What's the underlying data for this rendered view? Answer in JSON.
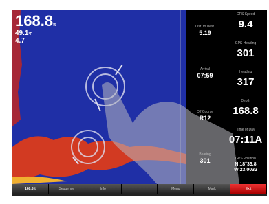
{
  "sonar": {
    "depth": "168.8",
    "depth_unit": "ft",
    "temperature": "49.1",
    "temperature_unit": "°F",
    "speed": "4.7"
  },
  "middle_panel": [
    {
      "label": "Dist. to Dest.",
      "value": "5.19"
    },
    {
      "label": "Arrival",
      "value": "07:59"
    },
    {
      "label": "Off Course",
      "value": "R12"
    },
    {
      "label": "Bearing",
      "value": "301"
    }
  ],
  "right_panel": [
    {
      "label": "GPS Speed",
      "value": "9.4"
    },
    {
      "label": "GPS Heading",
      "value": "301"
    },
    {
      "label": "Heading",
      "value": "317"
    },
    {
      "label": "Depth",
      "value": "168.8"
    },
    {
      "label": "Time of Day",
      "value": "07:11A"
    },
    {
      "label": "GPS Position",
      "value": "N 18°33.8",
      "value2": "W 23.0032"
    }
  ],
  "buttons": [
    "168.8ft",
    "Sequence",
    "Info",
    "",
    "Menu",
    "Mark",
    "Exit"
  ]
}
